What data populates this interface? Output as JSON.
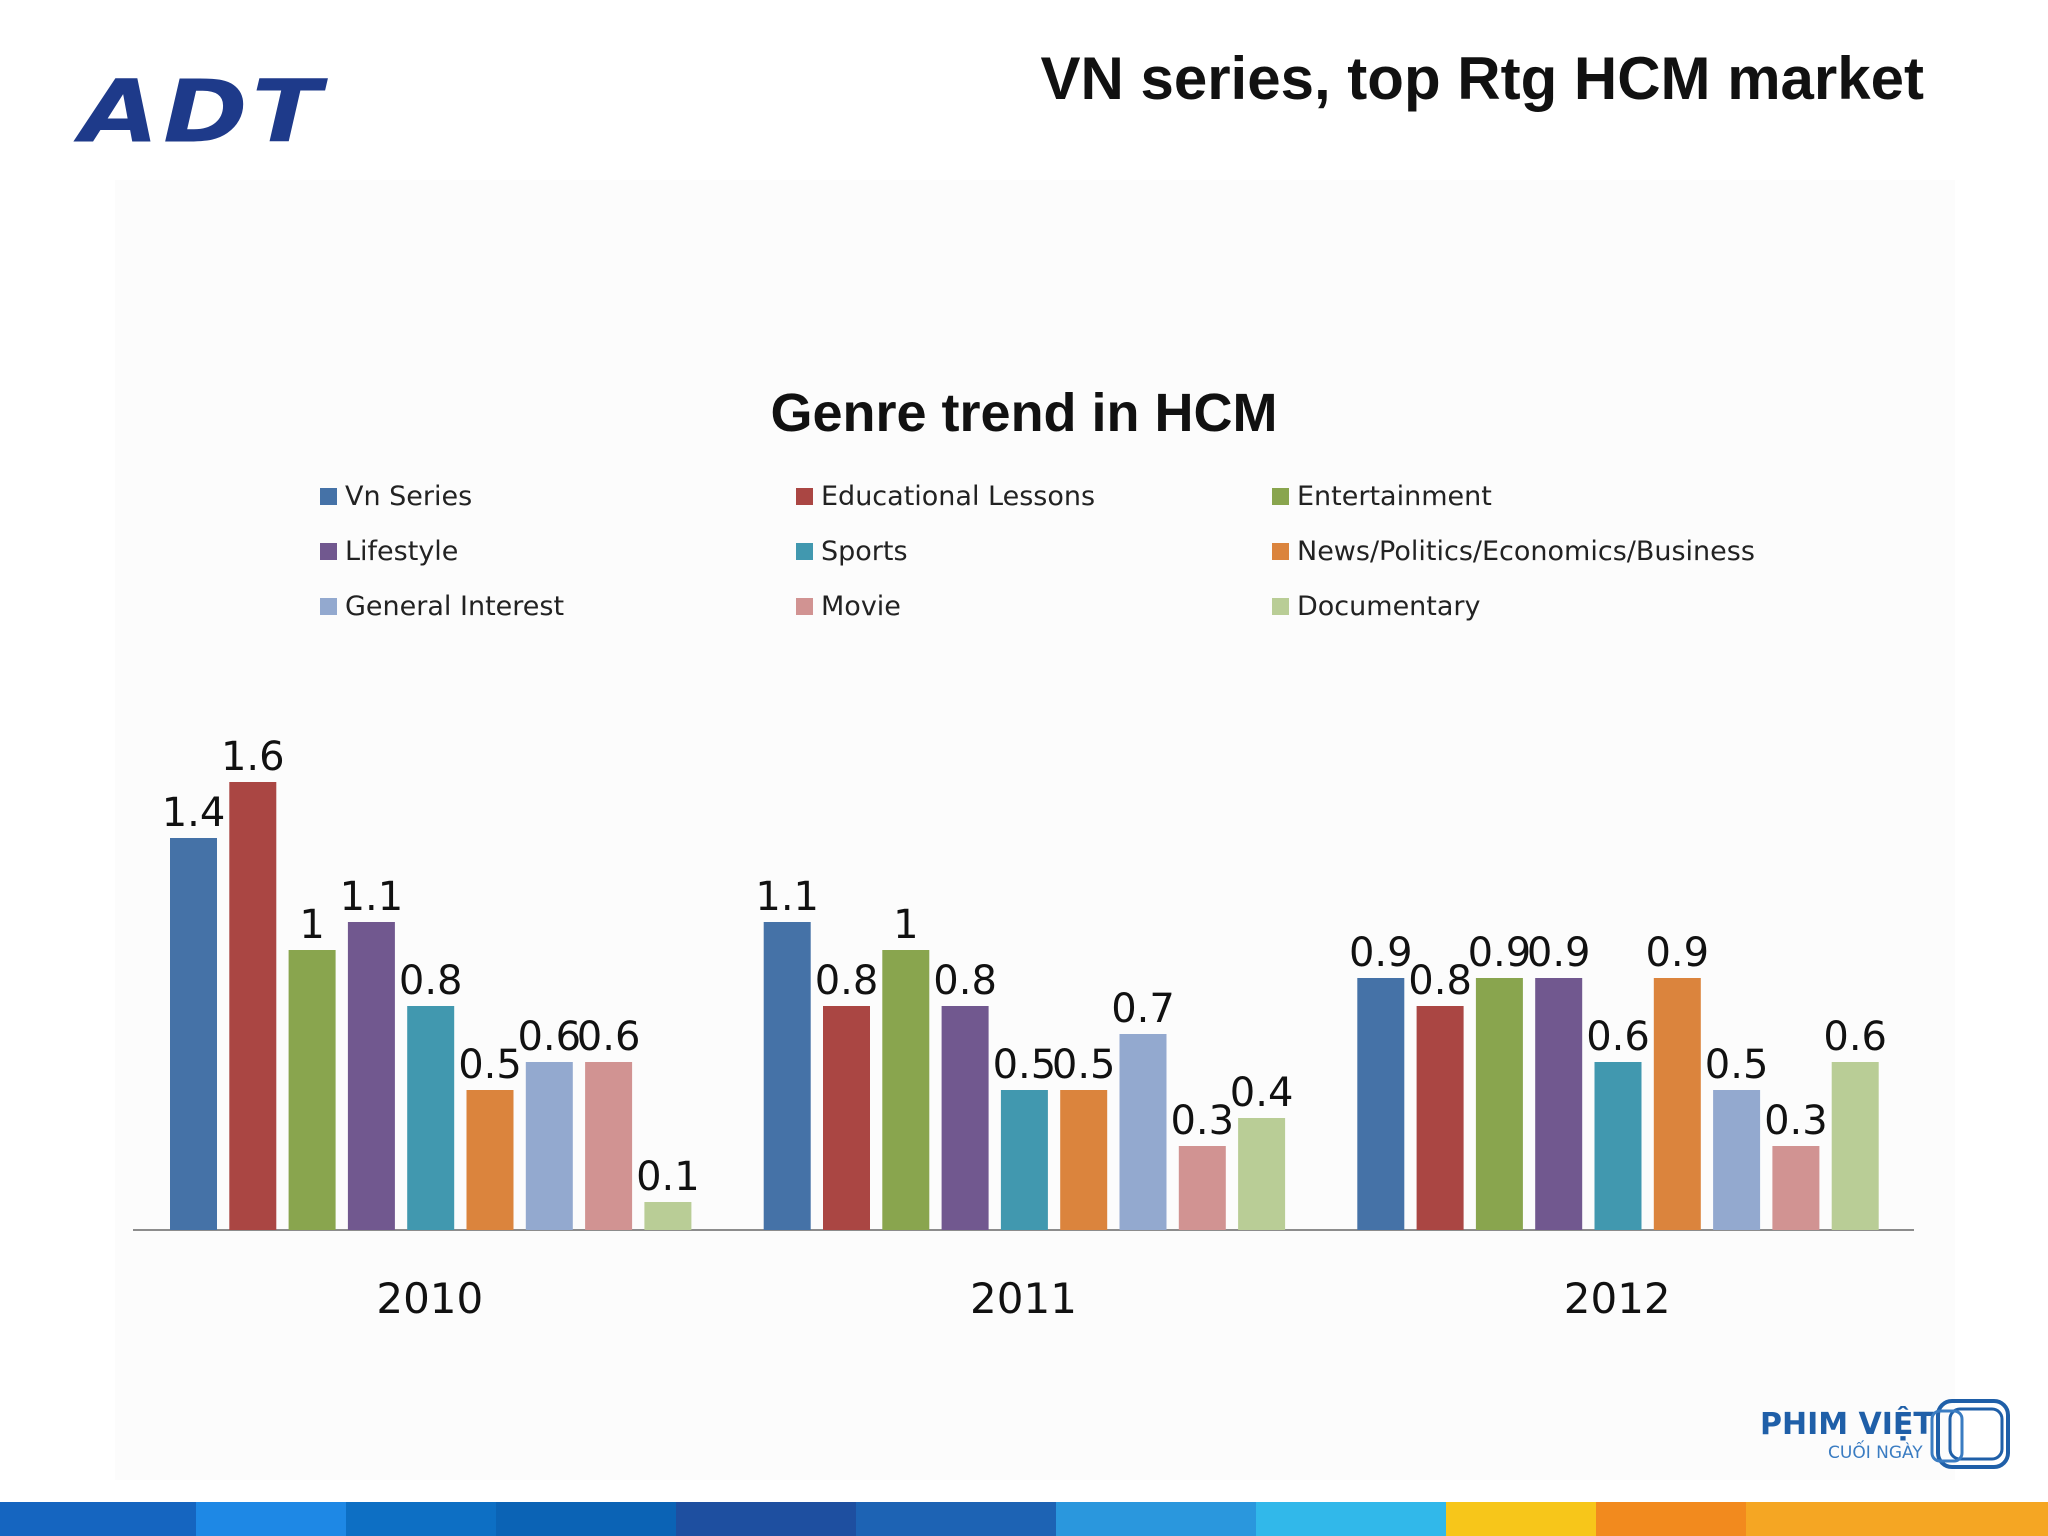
{
  "header": {
    "logo_text": "ADT",
    "title": "VN series, top Rtg HCM market"
  },
  "brand": {
    "name": "PHIM VIỆT",
    "sub": "CUỐI NGÀY"
  },
  "colors": {
    "logo": "#1e3a8a",
    "footer": [
      "#1565c0",
      "#1e88e5",
      "#0d6fc4",
      "#0b63b5",
      "#1e4fa0",
      "#1d63b4",
      "#2a97dd",
      "#31b8ea",
      "#f7c61a",
      "#f28a1e",
      "#f5a623"
    ]
  },
  "chart_data": {
    "type": "bar",
    "title": "Genre trend in HCM",
    "categories": [
      "2010",
      "2011",
      "2012"
    ],
    "series": [
      {
        "name": "Vn Series",
        "color": "#4572a7",
        "values": [
          1.4,
          1.1,
          0.9
        ]
      },
      {
        "name": "Educational Lessons",
        "color": "#aa4643",
        "values": [
          1.6,
          0.8,
          0.8
        ]
      },
      {
        "name": "Entertainment",
        "color": "#89a54e",
        "values": [
          1,
          1,
          0.9
        ]
      },
      {
        "name": "Lifestyle",
        "color": "#71588f",
        "values": [
          1.1,
          0.8,
          0.9
        ]
      },
      {
        "name": "Sports",
        "color": "#4198af",
        "values": [
          0.8,
          0.5,
          0.6
        ]
      },
      {
        "name": "News/Politics/Economics/Business",
        "color": "#db843d",
        "values": [
          0.5,
          0.5,
          0.9
        ]
      },
      {
        "name": "General Interest",
        "color": "#93a9cf",
        "values": [
          0.6,
          0.7,
          0.5
        ]
      },
      {
        "name": "Movie",
        "color": "#d19392",
        "values": [
          0.6,
          0.3,
          0.3
        ]
      },
      {
        "name": "Documentary",
        "color": "#b9cd96",
        "values": [
          0.1,
          0.4,
          0.6
        ]
      }
    ],
    "ylim": [
      0,
      1.7
    ],
    "grid": false,
    "legend_position": "top"
  }
}
